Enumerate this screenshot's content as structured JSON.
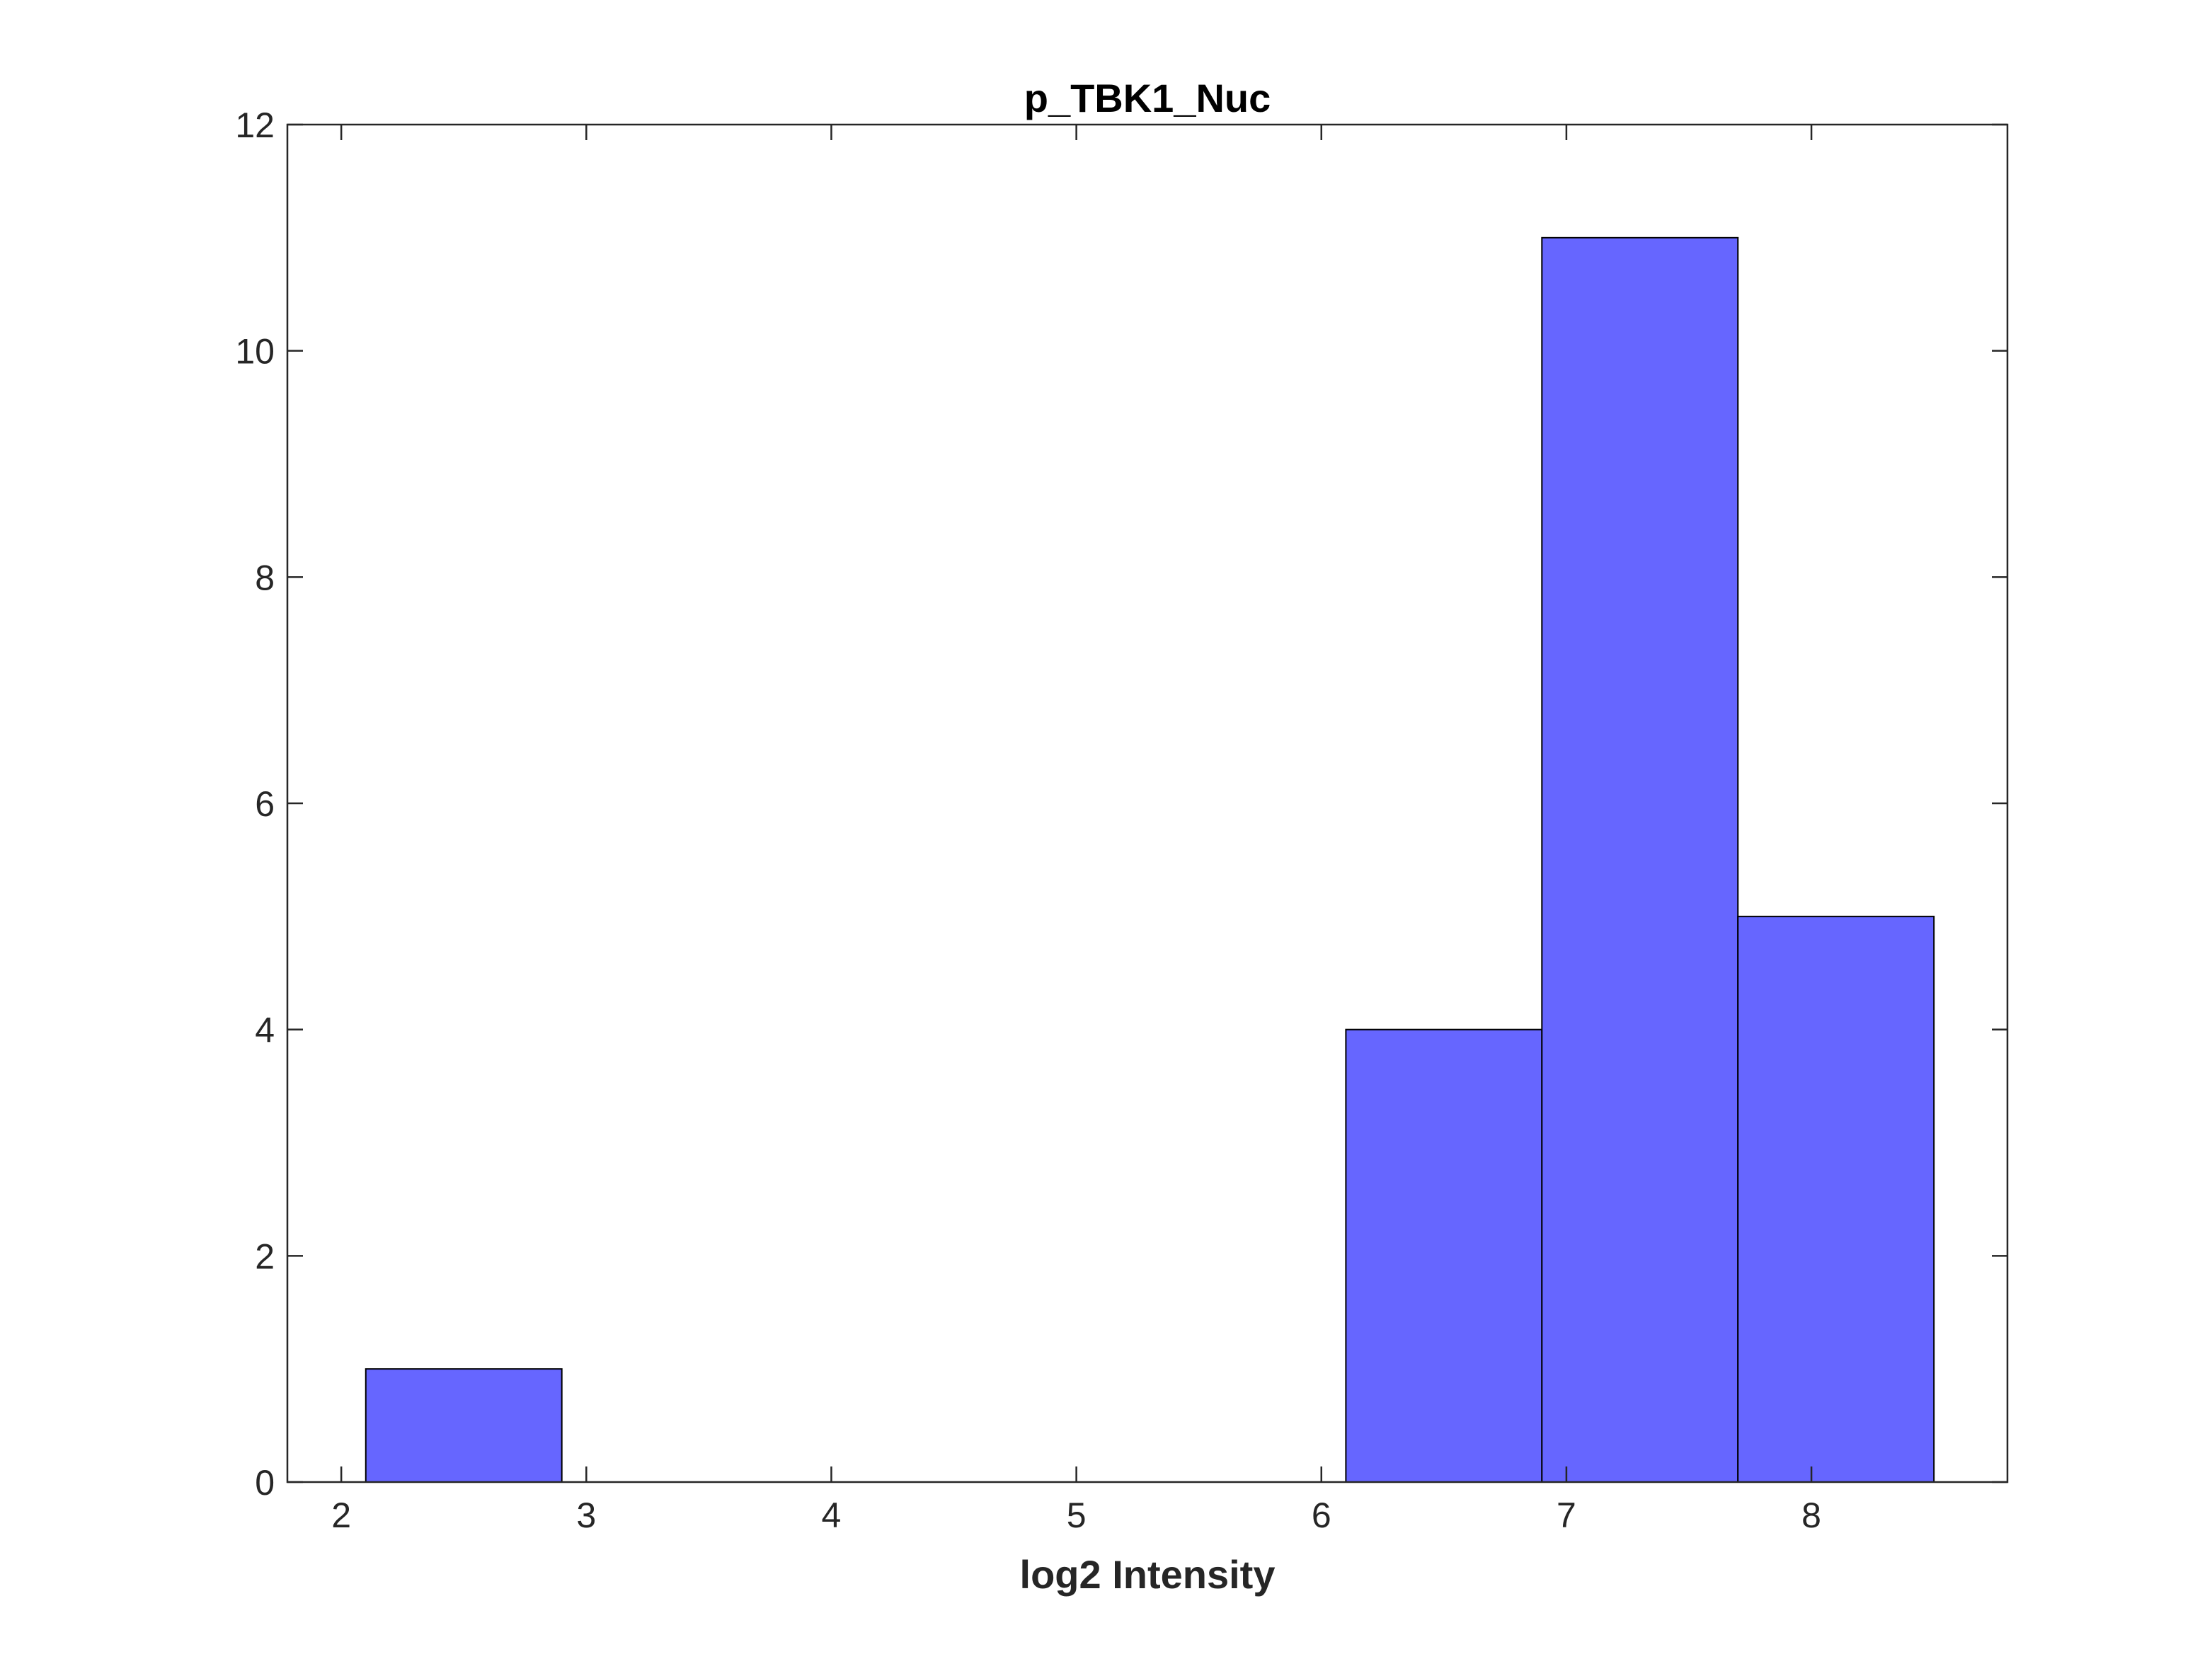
{
  "chart_data": {
    "type": "bar",
    "title": "p_TBK1_Nuc",
    "xlabel": "log2 Intensity",
    "ylabel": "",
    "xlim": [
      1.78,
      8.8
    ],
    "ylim": [
      0,
      12
    ],
    "xticks": [
      2,
      3,
      4,
      5,
      6,
      7,
      8
    ],
    "yticks": [
      0,
      2,
      4,
      6,
      8,
      10,
      12
    ],
    "bins": [
      {
        "x_start": 2.1,
        "x_end": 2.9,
        "value": 1
      },
      {
        "x_start": 6.1,
        "x_end": 6.9,
        "value": 4
      },
      {
        "x_start": 6.9,
        "x_end": 7.7,
        "value": 11
      },
      {
        "x_start": 7.7,
        "x_end": 8.5,
        "value": 5
      }
    ],
    "bar_color": "#6666ff",
    "edge_color": "#000000",
    "grid": false
  }
}
